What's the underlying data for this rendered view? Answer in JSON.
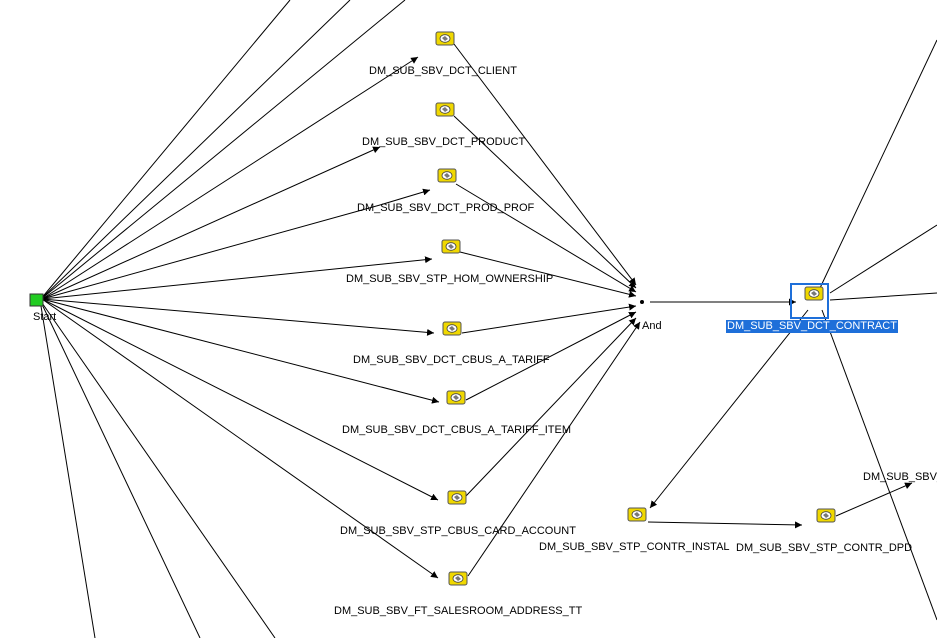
{
  "workflow": {
    "start_label": "Start",
    "and_label": "And",
    "selected_task": "DM_SUB_SBV_DCT_CONTRACT",
    "tasks": [
      "DM_SUB_SBV_DCT_CLIENT",
      "DM_SUB_SBV_DCT_PRODUCT",
      "DM_SUB_SBV_DCT_PROD_PROF",
      "DM_SUB_SBV_STP_HOM_OWNERSHIP",
      "DM_SUB_SBV_DCT_CBUS_A_TARIFF",
      "DM_SUB_SBV_DCT_CBUS_A_TARIFF_ITEM",
      "DM_SUB_SBV_STP_CBUS_CARD_ACCOUNT",
      "DM_SUB_SBV_FT_SALESROOM_ADDRESS_TT",
      "DM_SUB_SBV_DCT_CONTRACT",
      "DM_SUB_SBV_STP_CONTR_INSTAL",
      "DM_SUB_SBV_STP_CONTR_DPD",
      "DM_SUB_SBV_"
    ]
  },
  "colors": {
    "icon_fill": "#f0d800",
    "start_fill": "#22cc22",
    "selection": "#1e6fd9"
  }
}
